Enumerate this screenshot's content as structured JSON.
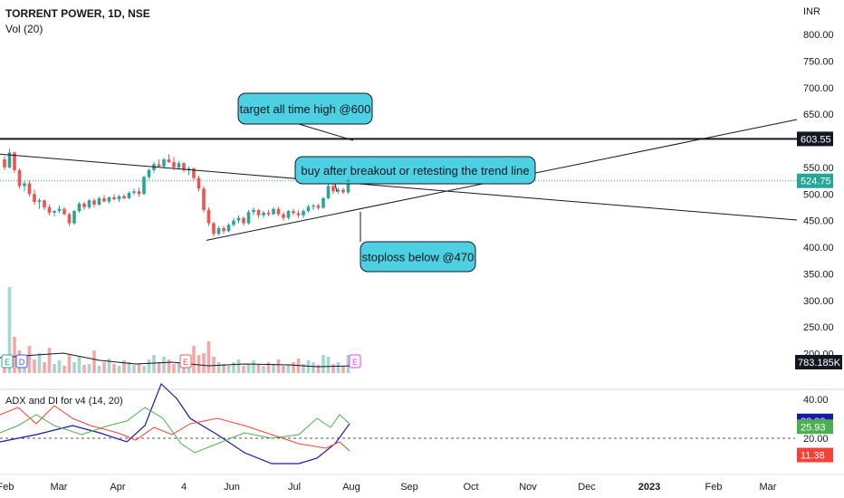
{
  "header": {
    "title": "TORRENT POWER, 1D, NSE",
    "volume_label": "Vol (20)",
    "currency": "INR",
    "indicator_label": "ADX and DI for v4 (14, 20)"
  },
  "chart_data": {
    "type": "candlestick",
    "price_axis": {
      "ticks": [
        "800.00",
        "750.00",
        "700.00",
        "650.00",
        "550.00",
        "500.00",
        "450.00",
        "400.00",
        "350.00",
        "300.00",
        "250.00",
        "200.00"
      ],
      "values": [
        800,
        750,
        700,
        650,
        550,
        500,
        450,
        400,
        350,
        300,
        250,
        200
      ]
    },
    "price_labels": {
      "resistance": "603.55",
      "last_price": "524.75",
      "volume": "783.185K"
    },
    "time_axis": [
      "Feb",
      "Mar",
      "Apr",
      "4",
      "Jun",
      "Jul",
      "Aug",
      "Sep",
      "Oct",
      "Nov",
      "Dec",
      "2023",
      "Feb",
      "Mar"
    ],
    "annotations": [
      "target all time high @600",
      "buy after breakout or retesting the trend line",
      "stoploss below @470"
    ],
    "horizontal_line": 603.55,
    "event_markers": [
      "E",
      "D",
      "E",
      "E"
    ],
    "adx_axis": {
      "ticks": [
        "40.00",
        "20.00"
      ],
      "values": [
        40,
        20
      ],
      "dashed_level": 20
    },
    "adx_labels": {
      "adx": "28.93",
      "di_plus": "25.93",
      "di_minus": "11.38"
    },
    "colors": {
      "up": "#26a69a",
      "down": "#ef5350",
      "adx": "#1a1aa6",
      "di_plus": "#4caf50",
      "di_minus": "#f44336",
      "annotation_fill": "#4dd0e1",
      "last_price_bg": "#26a69a",
      "volume_label_bg": "#131722"
    }
  }
}
